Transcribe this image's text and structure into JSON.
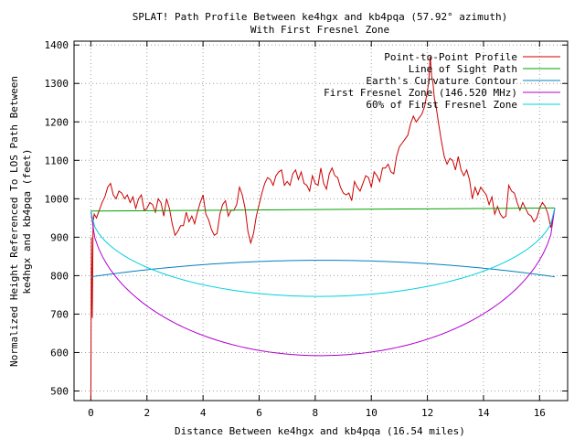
{
  "chart_data": {
    "type": "line",
    "title": "SPLAT! Path Profile Between ke4hgx and kb4pqa (57.92° azimuth)",
    "subtitle": "With First Fresnel Zone",
    "xlabel": "Distance Between ke4hgx and kb4pqa (16.54 miles)",
    "ylabel_line1": "Normalized Height Referenced To LOS Path Between",
    "ylabel_line2": "ke4hgx and kb4pqa (feet)",
    "xlim": [
      -0.6,
      17.0
    ],
    "ylim": [
      475,
      1410
    ],
    "x_ticks": [
      0,
      2,
      4,
      6,
      8,
      10,
      12,
      14,
      16
    ],
    "y_ticks": [
      500,
      600,
      700,
      800,
      900,
      1000,
      1100,
      1200,
      1300,
      1400
    ],
    "grid": true,
    "legend_position": "top-right",
    "series": [
      {
        "name": "Point-to-Point Profile",
        "color": "#cc0000",
        "x": [
          0,
          0.02,
          0.05,
          0.08,
          0.12,
          0.2,
          0.3,
          0.4,
          0.5,
          0.6,
          0.7,
          0.8,
          0.9,
          1.0,
          1.1,
          1.2,
          1.3,
          1.4,
          1.5,
          1.6,
          1.7,
          1.8,
          1.9,
          2.0,
          2.1,
          2.2,
          2.3,
          2.4,
          2.5,
          2.6,
          2.7,
          2.8,
          2.9,
          3.0,
          3.1,
          3.2,
          3.3,
          3.4,
          3.5,
          3.6,
          3.7,
          3.8,
          3.9,
          4.0,
          4.1,
          4.2,
          4.3,
          4.4,
          4.5,
          4.6,
          4.7,
          4.8,
          4.9,
          5.0,
          5.1,
          5.2,
          5.3,
          5.4,
          5.5,
          5.6,
          5.7,
          5.8,
          5.9,
          6.0,
          6.1,
          6.2,
          6.3,
          6.4,
          6.5,
          6.6,
          6.7,
          6.8,
          6.9,
          7.0,
          7.1,
          7.2,
          7.3,
          7.4,
          7.5,
          7.6,
          7.7,
          7.8,
          7.9,
          8.0,
          8.1,
          8.2,
          8.3,
          8.4,
          8.5,
          8.6,
          8.7,
          8.8,
          8.9,
          9.0,
          9.1,
          9.2,
          9.3,
          9.4,
          9.5,
          9.6,
          9.7,
          9.8,
          9.9,
          10.0,
          10.1,
          10.2,
          10.3,
          10.4,
          10.5,
          10.6,
          10.7,
          10.8,
          10.9,
          11.0,
          11.1,
          11.2,
          11.3,
          11.4,
          11.5,
          11.6,
          11.7,
          11.8,
          11.9,
          12.0,
          12.05,
          12.1,
          12.15,
          12.2,
          12.25,
          12.3,
          12.4,
          12.5,
          12.6,
          12.7,
          12.8,
          12.9,
          13.0,
          13.1,
          13.2,
          13.3,
          13.4,
          13.5,
          13.6,
          13.7,
          13.8,
          13.9,
          14.0,
          14.1,
          14.2,
          14.3,
          14.4,
          14.5,
          14.6,
          14.7,
          14.8,
          14.9,
          15.0,
          15.1,
          15.2,
          15.3,
          15.4,
          15.5,
          15.6,
          15.7,
          15.8,
          15.9,
          16.0,
          16.1,
          16.2,
          16.3,
          16.4,
          16.54
        ],
        "y": [
          480,
          900,
          690,
          940,
          960,
          950,
          970,
          990,
          1005,
          1030,
          1040,
          1010,
          1000,
          1020,
          1015,
          1000,
          1010,
          990,
          1005,
          975,
          1000,
          1010,
          970,
          975,
          990,
          985,
          965,
          1000,
          990,
          955,
          1000,
          975,
          935,
          905,
          915,
          930,
          930,
          965,
          940,
          955,
          935,
          965,
          990,
          1010,
          960,
          945,
          920,
          905,
          910,
          960,
          985,
          995,
          955,
          970,
          970,
          985,
          1030,
          1010,
          975,
          915,
          885,
          910,
          955,
          985,
          1015,
          1040,
          1055,
          1050,
          1035,
          1060,
          1070,
          1075,
          1035,
          1045,
          1035,
          1065,
          1075,
          1050,
          1070,
          1040,
          1035,
          1020,
          1060,
          1040,
          1035,
          1080,
          1040,
          1025,
          1065,
          1080,
          1060,
          1055,
          1030,
          1015,
          1010,
          1015,
          995,
          1045,
          1030,
          1020,
          1040,
          1060,
          1055,
          1030,
          1070,
          1060,
          1045,
          1080,
          1080,
          1090,
          1070,
          1065,
          1110,
          1135,
          1145,
          1155,
          1165,
          1195,
          1215,
          1200,
          1210,
          1220,
          1240,
          1280,
          1305,
          1370,
          1320,
          1300,
          1260,
          1245,
          1195,
          1150,
          1110,
          1090,
          1105,
          1100,
          1075,
          1110,
          1075,
          1060,
          1075,
          1050,
          1000,
          1030,
          1010,
          1030,
          1020,
          1010,
          985,
          1005,
          960,
          980,
          960,
          950,
          955,
          1035,
          1020,
          1015,
          990,
          970,
          990,
          975,
          960,
          955,
          940,
          950,
          975,
          990,
          980,
          960,
          925,
          975
        ]
      },
      {
        "name": "Line of Sight Path",
        "color": "#00a000",
        "x": [
          0,
          16.54
        ],
        "y": [
          968,
          976
        ]
      },
      {
        "name": "Earth's Curvature Contour",
        "color": "#0080c0",
        "curve": "earth",
        "x": [
          0,
          8.27,
          16.54
        ],
        "y": [
          797,
          840,
          797
        ]
      },
      {
        "name": "First Fresnel Zone (146.520 MHz)",
        "color": "#b000d0",
        "curve": "fresnel",
        "x": [
          0,
          8.27,
          16.54
        ],
        "y": [
          968,
          592,
          976
        ]
      },
      {
        "name": "60% of First Fresnel Zone",
        "color": "#00d0e0",
        "curve": "fresnel",
        "x": [
          0,
          8.27,
          16.54
        ],
        "y": [
          968,
          746,
          976
        ]
      }
    ]
  }
}
